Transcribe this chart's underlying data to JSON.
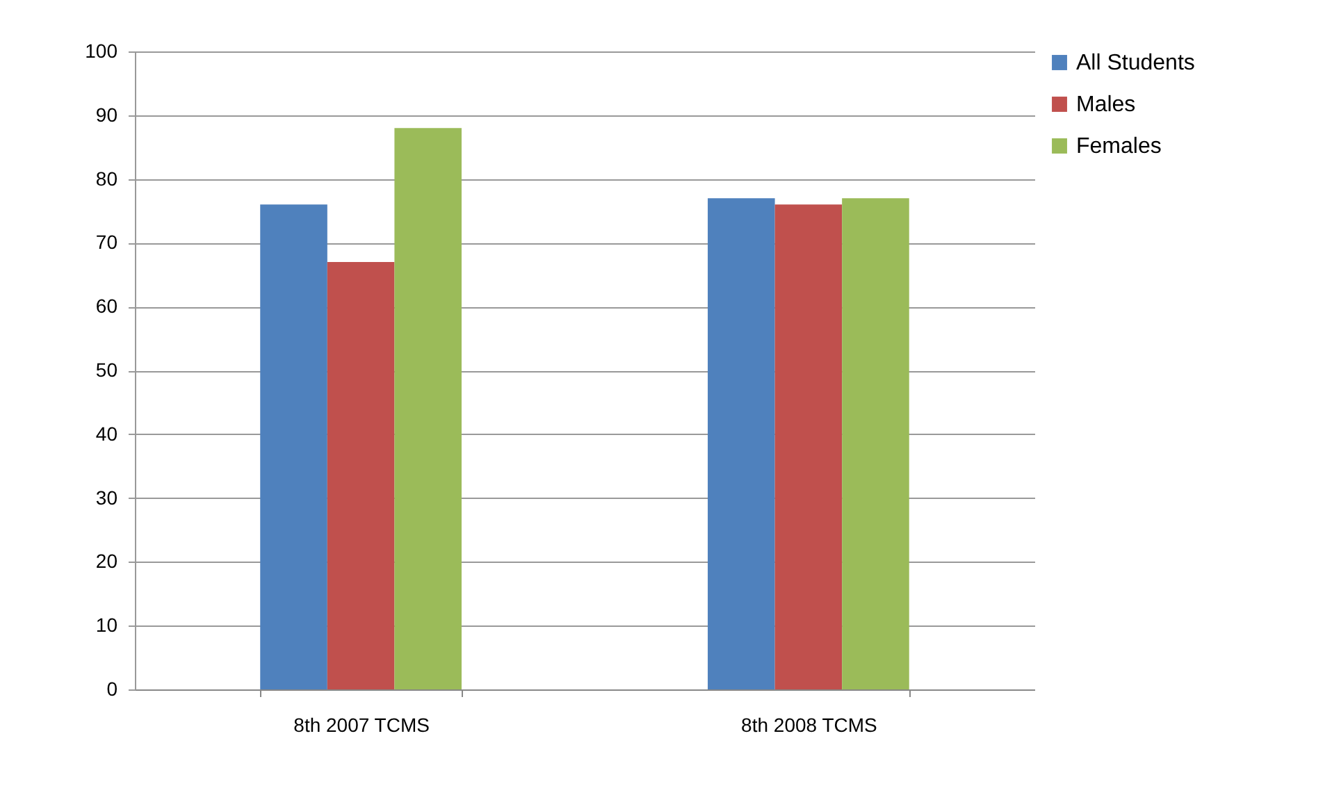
{
  "chart_data": {
    "type": "bar",
    "categories": [
      "8th 2007 TCMS",
      "8th 2008 TCMS"
    ],
    "series": [
      {
        "name": "All Students",
        "color": "#4f81bd",
        "values": [
          76,
          77
        ]
      },
      {
        "name": "Males",
        "color": "#c0504d",
        "values": [
          67,
          76
        ]
      },
      {
        "name": "Females",
        "color": "#9bbb59",
        "values": [
          88,
          77
        ]
      }
    ],
    "ylim": [
      0,
      100
    ],
    "yticks": [
      0,
      10,
      20,
      30,
      40,
      50,
      60,
      70,
      80,
      90,
      100
    ],
    "grid": "y",
    "legend": "right"
  }
}
